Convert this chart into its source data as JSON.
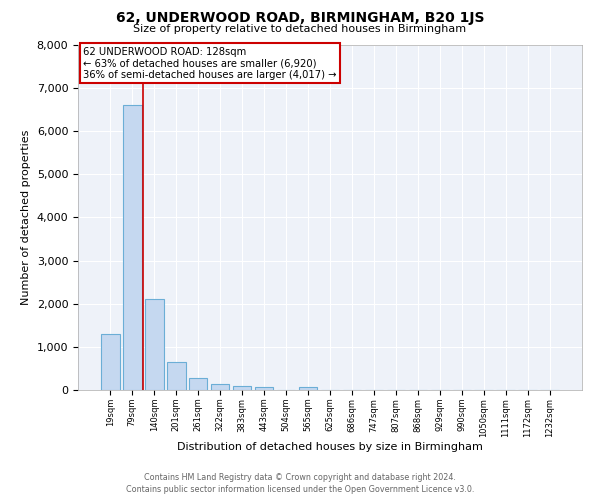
{
  "title": "62, UNDERWOOD ROAD, BIRMINGHAM, B20 1JS",
  "subtitle": "Size of property relative to detached houses in Birmingham",
  "xlabel": "Distribution of detached houses by size in Birmingham",
  "ylabel": "Number of detached properties",
  "bar_color": "#c5d8f0",
  "bar_edge_color": "#6baed6",
  "categories": [
    "19sqm",
    "79sqm",
    "140sqm",
    "201sqm",
    "261sqm",
    "322sqm",
    "383sqm",
    "443sqm",
    "504sqm",
    "565sqm",
    "625sqm",
    "686sqm",
    "747sqm",
    "807sqm",
    "868sqm",
    "929sqm",
    "990sqm",
    "1050sqm",
    "1111sqm",
    "1172sqm",
    "1232sqm"
  ],
  "values": [
    1300,
    6600,
    2100,
    650,
    280,
    140,
    100,
    70,
    0,
    70,
    0,
    0,
    0,
    0,
    0,
    0,
    0,
    0,
    0,
    0,
    0
  ],
  "property_line_idx": 1.5,
  "annotation_title": "62 UNDERWOOD ROAD: 128sqm",
  "annotation_line1": "← 63% of detached houses are smaller (6,920)",
  "annotation_line2": "36% of semi-detached houses are larger (4,017) →",
  "ylim": [
    0,
    8000
  ],
  "yticks": [
    0,
    1000,
    2000,
    3000,
    4000,
    5000,
    6000,
    7000,
    8000
  ],
  "footer1": "Contains HM Land Registry data © Crown copyright and database right 2024.",
  "footer2": "Contains public sector information licensed under the Open Government Licence v3.0.",
  "bg_color": "#eef2f9"
}
